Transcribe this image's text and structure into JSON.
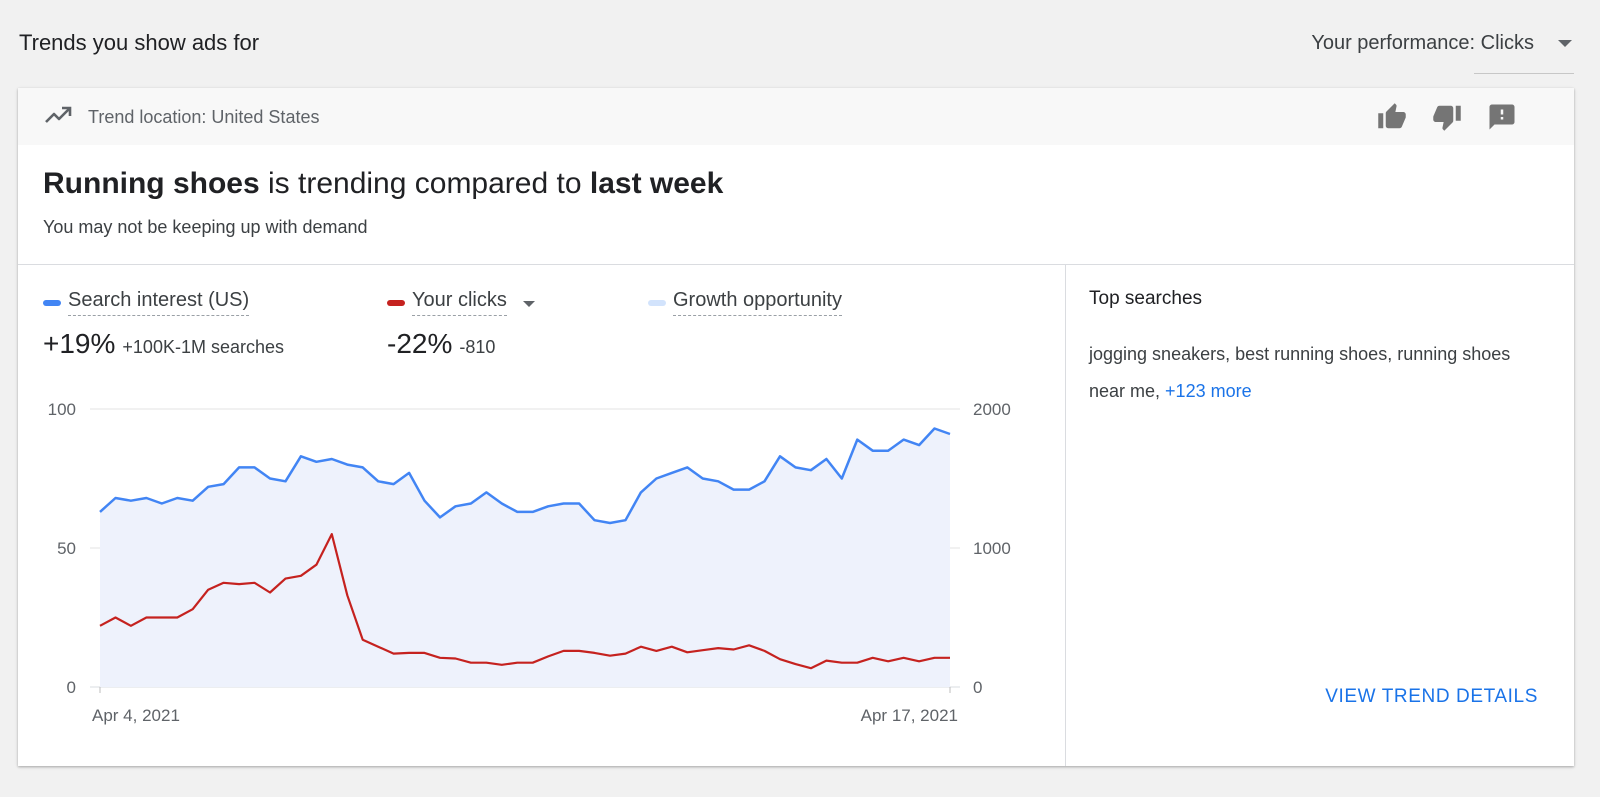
{
  "page": {
    "title": "Trends you show ads for",
    "performance_select": "Your performance: Clicks"
  },
  "card": {
    "location": "Trend location: United States",
    "headline": {
      "term": "Running shoes",
      "middle": " is trending compared to ",
      "period": "last week"
    },
    "subline": "You may not be keeping up with demand",
    "legend": {
      "search": {
        "label": "Search interest (US)",
        "value": "+19%",
        "detail": "+100K-1M searches",
        "color": "#4285f4"
      },
      "clicks": {
        "label": "Your clicks",
        "value": "-22%",
        "detail": "-810",
        "color": "#c5221f"
      },
      "growth": {
        "label": "Growth opportunity",
        "color": "#d2e3fc"
      }
    },
    "top_searches": {
      "title": "Top searches",
      "text": "jogging sneakers, best running shoes, running shoes near me, ",
      "more": "+123 more"
    },
    "view_details": "VIEW TREND DETAILS",
    "icons": {
      "trend": "trending-up-icon",
      "like": "thumb-up-icon",
      "dislike": "thumb-down-icon",
      "feedback": "feedback-icon"
    }
  },
  "chart_data": {
    "type": "line",
    "x_start_label": "Apr 4, 2021",
    "x_end_label": "Apr 17, 2021",
    "left_axis": {
      "ticks": [
        "100",
        "50",
        "0"
      ],
      "ylim": [
        0,
        100
      ]
    },
    "right_axis": {
      "ticks": [
        "2000",
        "1000",
        "0"
      ],
      "ylim": [
        0,
        2000
      ]
    },
    "grid": true,
    "series": [
      {
        "name": "Search interest (US)",
        "axis": "left",
        "color": "#4285f4",
        "fill": "#eef2fc",
        "values": [
          63,
          68,
          67,
          68,
          66,
          68,
          67,
          72,
          73,
          79,
          79,
          75,
          74,
          83,
          81,
          82,
          80,
          79,
          74,
          73,
          77,
          67,
          61,
          65,
          66,
          70,
          66,
          63,
          63,
          65,
          66,
          66,
          60,
          59,
          60,
          70,
          75,
          77,
          79,
          75,
          74,
          71,
          71,
          74,
          83,
          79,
          78,
          82,
          75,
          89,
          85,
          85,
          89,
          87,
          93,
          91
        ]
      },
      {
        "name": "Your clicks",
        "axis": "right",
        "color": "#c5221f",
        "values": [
          440,
          500,
          440,
          500,
          500,
          500,
          560,
          700,
          750,
          740,
          750,
          680,
          780,
          800,
          880,
          1100,
          660,
          340,
          290,
          240,
          245,
          245,
          210,
          205,
          175,
          175,
          160,
          175,
          175,
          220,
          260,
          260,
          245,
          225,
          240,
          290,
          260,
          290,
          250,
          265,
          280,
          270,
          300,
          260,
          200,
          165,
          135,
          190,
          175,
          175,
          210,
          185,
          210,
          185,
          210,
          210
        ]
      }
    ]
  }
}
